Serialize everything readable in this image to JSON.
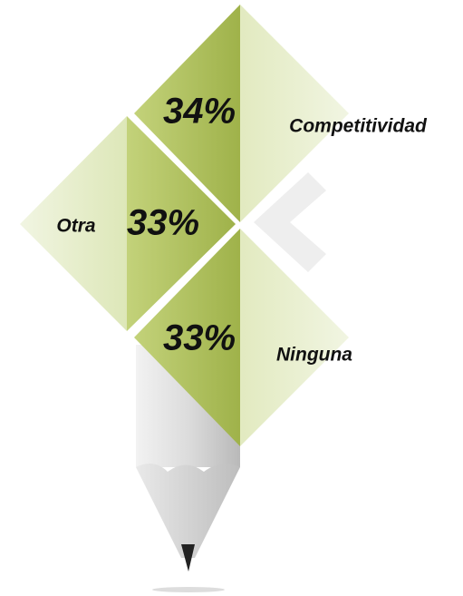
{
  "items": [
    {
      "value": "34%",
      "label": "Competitividad"
    },
    {
      "value": "33%",
      "label": "Otra"
    },
    {
      "value": "33%",
      "label": "Ninguna"
    }
  ]
}
